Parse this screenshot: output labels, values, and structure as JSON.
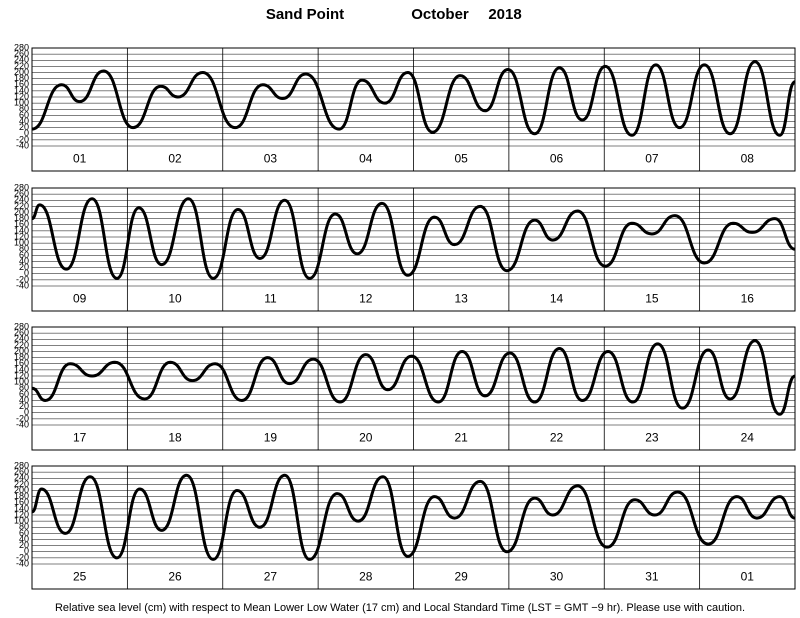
{
  "header": {
    "station": "Sand Point",
    "month": "October",
    "year": "2018"
  },
  "footer": "Relative sea level (cm) with respect to Mean Lower Low Water (17 cm) and Local Standard Time (LST = GMT −9 hr). Please use with caution.",
  "chart_data": [
    {
      "type": "line",
      "categories": [
        "01",
        "02",
        "03",
        "04",
        "05",
        "06",
        "07",
        "08"
      ],
      "xlim": [
        0,
        8
      ],
      "ylim": [
        -40,
        280
      ],
      "yticks": [
        -40,
        -20,
        0,
        20,
        40,
        60,
        80,
        100,
        120,
        140,
        160,
        180,
        200,
        220,
        240,
        260,
        280
      ],
      "grid": true,
      "color": "#000000",
      "x": [
        0,
        0.31,
        0.5,
        0.75,
        1.06,
        1.35,
        1.53,
        1.79,
        2.13,
        2.42,
        2.63,
        2.87,
        3.22,
        3.46,
        3.7,
        3.94,
        4.2,
        4.49,
        4.75,
        4.99,
        5.27,
        5.53,
        5.77,
        6.01,
        6.29,
        6.54,
        6.79,
        7.05,
        7.32,
        7.58,
        7.84,
        8
      ],
      "values": [
        15,
        160,
        105,
        205,
        20,
        155,
        120,
        200,
        20,
        160,
        115,
        195,
        15,
        175,
        100,
        200,
        5,
        190,
        75,
        210,
        0,
        215,
        45,
        220,
        -5,
        225,
        20,
        225,
        0,
        235,
        -5,
        170
      ]
    },
    {
      "type": "line",
      "categories": [
        "09",
        "10",
        "11",
        "12",
        "13",
        "14",
        "15",
        "16"
      ],
      "xlim": [
        0,
        8
      ],
      "ylim": [
        -40,
        280
      ],
      "yticks": [
        -40,
        -20,
        0,
        20,
        40,
        60,
        80,
        100,
        120,
        140,
        160,
        180,
        200,
        220,
        240,
        260,
        280
      ],
      "grid": true,
      "color": "#000000",
      "x": [
        0,
        0.08,
        0.36,
        0.63,
        0.89,
        1.12,
        1.36,
        1.64,
        1.9,
        2.16,
        2.39,
        2.65,
        2.91,
        3.18,
        3.41,
        3.67,
        3.94,
        4.22,
        4.43,
        4.7,
        4.98,
        5.27,
        5.46,
        5.72,
        6.01,
        6.29,
        6.5,
        6.74,
        7.05,
        7.35,
        7.55,
        7.79,
        8
      ],
      "values": [
        180,
        225,
        15,
        245,
        -15,
        215,
        30,
        245,
        -15,
        210,
        50,
        240,
        -15,
        195,
        65,
        230,
        -5,
        185,
        95,
        220,
        10,
        175,
        110,
        205,
        25,
        165,
        130,
        190,
        35,
        165,
        135,
        180,
        80
      ]
    },
    {
      "type": "line",
      "categories": [
        "17",
        "18",
        "19",
        "20",
        "21",
        "22",
        "23",
        "24"
      ],
      "xlim": [
        0,
        8
      ],
      "ylim": [
        -40,
        280
      ],
      "yticks": [
        -40,
        -20,
        0,
        20,
        40,
        60,
        80,
        100,
        120,
        140,
        160,
        180,
        200,
        220,
        240,
        260,
        280
      ],
      "grid": true,
      "color": "#000000",
      "x": [
        0,
        0.14,
        0.4,
        0.63,
        0.87,
        1.18,
        1.45,
        1.68,
        1.92,
        2.2,
        2.47,
        2.7,
        2.95,
        3.23,
        3.5,
        3.73,
        3.98,
        4.26,
        4.51,
        4.75,
        5.01,
        5.27,
        5.53,
        5.77,
        6.04,
        6.3,
        6.56,
        6.82,
        7.09,
        7.32,
        7.58,
        7.84,
        8
      ],
      "values": [
        80,
        40,
        160,
        120,
        165,
        45,
        165,
        105,
        160,
        40,
        180,
        95,
        175,
        35,
        190,
        75,
        185,
        35,
        200,
        55,
        195,
        35,
        210,
        40,
        200,
        35,
        225,
        15,
        205,
        45,
        235,
        -5,
        120
      ]
    },
    {
      "type": "line",
      "categories": [
        "25",
        "26",
        "27",
        "28",
        "29",
        "30",
        "31",
        "01"
      ],
      "xlim": [
        0,
        8
      ],
      "ylim": [
        -40,
        280
      ],
      "yticks": [
        -40,
        -20,
        0,
        20,
        40,
        60,
        80,
        100,
        120,
        140,
        160,
        180,
        200,
        220,
        240,
        260,
        280
      ],
      "grid": true,
      "color": "#000000",
      "x": [
        0,
        0.1,
        0.35,
        0.61,
        0.89,
        1.13,
        1.36,
        1.62,
        1.9,
        2.15,
        2.39,
        2.65,
        2.91,
        3.2,
        3.42,
        3.68,
        3.94,
        4.22,
        4.43,
        4.7,
        4.98,
        5.27,
        5.46,
        5.72,
        6.03,
        6.32,
        6.53,
        6.77,
        7.09,
        7.39,
        7.6,
        7.84,
        8
      ],
      "values": [
        130,
        205,
        60,
        245,
        -20,
        205,
        70,
        250,
        -25,
        200,
        80,
        250,
        -25,
        190,
        100,
        245,
        -15,
        180,
        110,
        230,
        0,
        175,
        120,
        215,
        15,
        170,
        120,
        195,
        25,
        180,
        110,
        180,
        110
      ]
    }
  ]
}
